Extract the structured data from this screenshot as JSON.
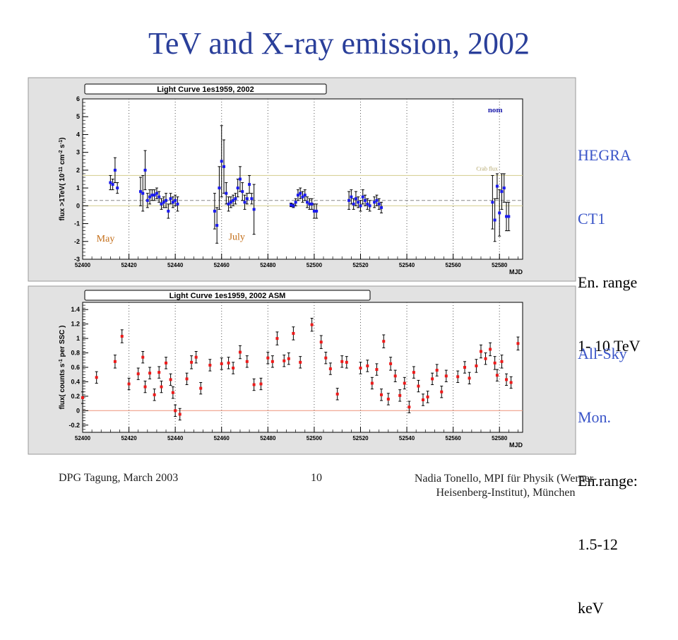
{
  "slide": {
    "title": "TeV and X-ray emission, 2002",
    "footer_left": "DPG Tagung, March 2003",
    "footer_page": "10",
    "footer_right_line1": "Nadia Tonello, MPI für Physik (Werner-",
    "footer_right_line2": "Heisenberg-Institut), München"
  },
  "side_labels": {
    "hegra_line1": "HEGRA",
    "hegra_line2": "CT1",
    "hegra_line3": "En. range",
    "hegra_line4": "1- 10 TeV",
    "asm_line1": "All-Sky",
    "asm_line2": "Mon.",
    "asm_line3": "En.range:",
    "asm_line4": "1.5-12",
    "asm_line5": "keV"
  },
  "colors": {
    "title": "#2a3f9a",
    "side_label": "#3a55c8",
    "points_top": "#1a1aee",
    "points_bottom": "#ee1a1a",
    "crab_line": "#d9d29a",
    "annotation": "#c46f1a",
    "zero_line_bottom": "#f0a08a"
  },
  "chart_data": [
    {
      "type": "scatter",
      "title": "Light Curve 1es1959, 2002",
      "xlabel": "MJD",
      "ylabel": "flux >1TeV( 10^-11 cm^-2 s^-1)",
      "xlim": [
        52400,
        52590
      ],
      "ylim": [
        -3,
        6
      ],
      "xticks": [
        "52400",
        "52420",
        "52440",
        "52460",
        "52480",
        "52500",
        "52520",
        "52540",
        "52560",
        "52580"
      ],
      "yticks": [
        "-3",
        "-2",
        "-1",
        "0",
        "1",
        "2",
        "3",
        "4",
        "5",
        "6"
      ],
      "dotted_gridlines_x": [
        52420,
        52440,
        52460,
        52480,
        52500,
        52520,
        52540,
        52560,
        52580
      ],
      "reference_lines": [
        {
          "label": "Crab flux",
          "y": 1.7
        }
      ],
      "dashed_level": 0.3,
      "annotations": [
        "nom",
        "May",
        "July"
      ],
      "points": [
        {
          "x": 52412,
          "y": 1.3,
          "err": 0.4
        },
        {
          "x": 52413,
          "y": 1.2,
          "err": 0.3
        },
        {
          "x": 52414,
          "y": 2.0,
          "err": 0.7
        },
        {
          "x": 52415,
          "y": 1.0,
          "err": 0.3
        },
        {
          "x": 52425,
          "y": 0.8,
          "err": 0.8
        },
        {
          "x": 52426,
          "y": 0.7,
          "err": 1.0
        },
        {
          "x": 52427,
          "y": 2.0,
          "err": 1.1
        },
        {
          "x": 52428,
          "y": 0.3,
          "err": 0.4
        },
        {
          "x": 52429,
          "y": 0.5,
          "err": 0.4
        },
        {
          "x": 52430,
          "y": 0.6,
          "err": 0.3
        },
        {
          "x": 52431,
          "y": 0.6,
          "err": 0.3
        },
        {
          "x": 52432,
          "y": 0.7,
          "err": 0.3
        },
        {
          "x": 52433,
          "y": 0.5,
          "err": 0.3
        },
        {
          "x": 52434,
          "y": 0.1,
          "err": 0.3
        },
        {
          "x": 52435,
          "y": 0.2,
          "err": 0.3
        },
        {
          "x": 52436,
          "y": 0.3,
          "err": 0.4
        },
        {
          "x": 52437,
          "y": -0.3,
          "err": 0.4
        },
        {
          "x": 52438,
          "y": 0.4,
          "err": 0.3
        },
        {
          "x": 52439,
          "y": 0.2,
          "err": 0.3
        },
        {
          "x": 52440,
          "y": 0.3,
          "err": 0.3
        },
        {
          "x": 52441,
          "y": 0.1,
          "err": 0.4
        },
        {
          "x": 52457,
          "y": -0.3,
          "err": 1.0
        },
        {
          "x": 52458,
          "y": -1.1,
          "err": 1.0
        },
        {
          "x": 52459,
          "y": 1.0,
          "err": 1.2
        },
        {
          "x": 52460,
          "y": 2.5,
          "err": 2.0
        },
        {
          "x": 52461,
          "y": 2.2,
          "err": 1.5
        },
        {
          "x": 52462,
          "y": 0.7,
          "err": 0.6
        },
        {
          "x": 52463,
          "y": 0.1,
          "err": 0.4
        },
        {
          "x": 52464,
          "y": 0.2,
          "err": 0.3
        },
        {
          "x": 52465,
          "y": 0.3,
          "err": 0.3
        },
        {
          "x": 52466,
          "y": 0.4,
          "err": 0.3
        },
        {
          "x": 52467,
          "y": 1.0,
          "err": 0.5
        },
        {
          "x": 52468,
          "y": 1.5,
          "err": 0.7
        },
        {
          "x": 52469,
          "y": 0.8,
          "err": 0.5
        },
        {
          "x": 52470,
          "y": 0.2,
          "err": 0.4
        },
        {
          "x": 52471,
          "y": 0.4,
          "err": 0.3
        },
        {
          "x": 52472,
          "y": 1.2,
          "err": 0.5
        },
        {
          "x": 52473,
          "y": 0.4,
          "err": 0.3
        },
        {
          "x": 52474,
          "y": -0.2,
          "err": 1.4
        },
        {
          "x": 52490,
          "y": 0.05,
          "err": 0.1
        },
        {
          "x": 52491,
          "y": 0.0,
          "err": 0.1
        },
        {
          "x": 52492,
          "y": 0.2,
          "err": 0.2
        },
        {
          "x": 52493,
          "y": 0.6,
          "err": 0.3
        },
        {
          "x": 52494,
          "y": 0.7,
          "err": 0.3
        },
        {
          "x": 52495,
          "y": 0.5,
          "err": 0.3
        },
        {
          "x": 52496,
          "y": 0.6,
          "err": 0.3
        },
        {
          "x": 52497,
          "y": 0.2,
          "err": 0.3
        },
        {
          "x": 52498,
          "y": 0.1,
          "err": 0.3
        },
        {
          "x": 52499,
          "y": 0.1,
          "err": 0.3
        },
        {
          "x": 52500,
          "y": -0.3,
          "err": 0.4
        },
        {
          "x": 52501,
          "y": -0.3,
          "err": 0.4
        },
        {
          "x": 52515,
          "y": 0.3,
          "err": 0.5
        },
        {
          "x": 52516,
          "y": 0.5,
          "err": 0.4
        },
        {
          "x": 52517,
          "y": 0.1,
          "err": 0.3
        },
        {
          "x": 52518,
          "y": 0.4,
          "err": 0.4
        },
        {
          "x": 52519,
          "y": 0.2,
          "err": 0.3
        },
        {
          "x": 52520,
          "y": 0.0,
          "err": 0.3
        },
        {
          "x": 52521,
          "y": 0.5,
          "err": 0.4
        },
        {
          "x": 52522,
          "y": 0.3,
          "err": 0.3
        },
        {
          "x": 52523,
          "y": 0.1,
          "err": 0.3
        },
        {
          "x": 52524,
          "y": 0.0,
          "err": 0.3
        },
        {
          "x": 52526,
          "y": 0.2,
          "err": 0.3
        },
        {
          "x": 52527,
          "y": 0.3,
          "err": 0.3
        },
        {
          "x": 52528,
          "y": 0.1,
          "err": 0.3
        },
        {
          "x": 52529,
          "y": -0.1,
          "err": 0.3
        },
        {
          "x": 52577,
          "y": 0.2,
          "err": 1.5
        },
        {
          "x": 52578,
          "y": -0.8,
          "err": 1.2
        },
        {
          "x": 52579,
          "y": 1.1,
          "err": 0.7
        },
        {
          "x": 52580,
          "y": -0.4,
          "err": 1.3
        },
        {
          "x": 52581,
          "y": 0.8,
          "err": 1.0
        },
        {
          "x": 52582,
          "y": 1.0,
          "err": 0.8
        },
        {
          "x": 52583,
          "y": -0.6,
          "err": 0.8
        },
        {
          "x": 52584,
          "y": -0.6,
          "err": 0.8
        }
      ]
    },
    {
      "type": "scatter",
      "title": "Light Curve 1es1959, 2002 ASM",
      "xlabel": "MJD",
      "ylabel": "flux( counts s^-1 per SSC )",
      "xlim": [
        52400,
        52590
      ],
      "ylim": [
        -0.3,
        1.5
      ],
      "xticks": [
        "52400",
        "52420",
        "52440",
        "52460",
        "52480",
        "52500",
        "52520",
        "52540",
        "52560",
        "52580"
      ],
      "yticks": [
        "-0.2",
        "0",
        "0.2",
        "0.4",
        "0.6",
        "0.8",
        "1",
        "1.2",
        "1.4"
      ],
      "dotted_gridlines_x": [
        52420,
        52440,
        52460,
        52480,
        52500,
        52520,
        52540,
        52560,
        52580
      ],
      "points": [
        {
          "x": 52400,
          "y": 0.18,
          "err": 0.08
        },
        {
          "x": 52406,
          "y": 0.46,
          "err": 0.08
        },
        {
          "x": 52414,
          "y": 0.68,
          "err": 0.09
        },
        {
          "x": 52417,
          "y": 1.03,
          "err": 0.09
        },
        {
          "x": 52420,
          "y": 0.37,
          "err": 0.08
        },
        {
          "x": 52424,
          "y": 0.51,
          "err": 0.08
        },
        {
          "x": 52426,
          "y": 0.74,
          "err": 0.08
        },
        {
          "x": 52427,
          "y": 0.33,
          "err": 0.08
        },
        {
          "x": 52429,
          "y": 0.52,
          "err": 0.08
        },
        {
          "x": 52431,
          "y": 0.22,
          "err": 0.08
        },
        {
          "x": 52433,
          "y": 0.53,
          "err": 0.08
        },
        {
          "x": 52434,
          "y": 0.33,
          "err": 0.08
        },
        {
          "x": 52436,
          "y": 0.66,
          "err": 0.08
        },
        {
          "x": 52438,
          "y": 0.43,
          "err": 0.08
        },
        {
          "x": 52439,
          "y": 0.25,
          "err": 0.08
        },
        {
          "x": 52440,
          "y": 0.0,
          "err": 0.08
        },
        {
          "x": 52442,
          "y": -0.05,
          "err": 0.08
        },
        {
          "x": 52445,
          "y": 0.44,
          "err": 0.08
        },
        {
          "x": 52447,
          "y": 0.67,
          "err": 0.09
        },
        {
          "x": 52449,
          "y": 0.74,
          "err": 0.08
        },
        {
          "x": 52451,
          "y": 0.31,
          "err": 0.08
        },
        {
          "x": 52455,
          "y": 0.63,
          "err": 0.08
        },
        {
          "x": 52460,
          "y": 0.65,
          "err": 0.08
        },
        {
          "x": 52463,
          "y": 0.66,
          "err": 0.08
        },
        {
          "x": 52465,
          "y": 0.59,
          "err": 0.08
        },
        {
          "x": 52468,
          "y": 0.81,
          "err": 0.09
        },
        {
          "x": 52471,
          "y": 0.68,
          "err": 0.08
        },
        {
          "x": 52474,
          "y": 0.36,
          "err": 0.08
        },
        {
          "x": 52477,
          "y": 0.37,
          "err": 0.08
        },
        {
          "x": 52480,
          "y": 0.73,
          "err": 0.08
        },
        {
          "x": 52482,
          "y": 0.68,
          "err": 0.08
        },
        {
          "x": 52484,
          "y": 1.0,
          "err": 0.09
        },
        {
          "x": 52487,
          "y": 0.69,
          "err": 0.08
        },
        {
          "x": 52489,
          "y": 0.72,
          "err": 0.08
        },
        {
          "x": 52491,
          "y": 1.07,
          "err": 0.09
        },
        {
          "x": 52494,
          "y": 0.67,
          "err": 0.08
        },
        {
          "x": 52499,
          "y": 1.19,
          "err": 0.09
        },
        {
          "x": 52503,
          "y": 0.95,
          "err": 0.09
        },
        {
          "x": 52505,
          "y": 0.73,
          "err": 0.08
        },
        {
          "x": 52507,
          "y": 0.58,
          "err": 0.08
        },
        {
          "x": 52510,
          "y": 0.23,
          "err": 0.08
        },
        {
          "x": 52512,
          "y": 0.68,
          "err": 0.08
        },
        {
          "x": 52514,
          "y": 0.67,
          "err": 0.08
        },
        {
          "x": 52520,
          "y": 0.59,
          "err": 0.08
        },
        {
          "x": 52523,
          "y": 0.62,
          "err": 0.08
        },
        {
          "x": 52525,
          "y": 0.38,
          "err": 0.08
        },
        {
          "x": 52527,
          "y": 0.57,
          "err": 0.08
        },
        {
          "x": 52529,
          "y": 0.22,
          "err": 0.08
        },
        {
          "x": 52530,
          "y": 0.96,
          "err": 0.09
        },
        {
          "x": 52532,
          "y": 0.16,
          "err": 0.08
        },
        {
          "x": 52533,
          "y": 0.65,
          "err": 0.09
        },
        {
          "x": 52535,
          "y": 0.48,
          "err": 0.08
        },
        {
          "x": 52537,
          "y": 0.21,
          "err": 0.08
        },
        {
          "x": 52539,
          "y": 0.38,
          "err": 0.08
        },
        {
          "x": 52541,
          "y": 0.05,
          "err": 0.08
        },
        {
          "x": 52543,
          "y": 0.53,
          "err": 0.08
        },
        {
          "x": 52545,
          "y": 0.34,
          "err": 0.08
        },
        {
          "x": 52547,
          "y": 0.15,
          "err": 0.08
        },
        {
          "x": 52549,
          "y": 0.19,
          "err": 0.08
        },
        {
          "x": 52551,
          "y": 0.44,
          "err": 0.08
        },
        {
          "x": 52553,
          "y": 0.56,
          "err": 0.08
        },
        {
          "x": 52555,
          "y": 0.26,
          "err": 0.08
        },
        {
          "x": 52557,
          "y": 0.48,
          "err": 0.08
        },
        {
          "x": 52562,
          "y": 0.47,
          "err": 0.08
        },
        {
          "x": 52565,
          "y": 0.6,
          "err": 0.08
        },
        {
          "x": 52567,
          "y": 0.45,
          "err": 0.08
        },
        {
          "x": 52570,
          "y": 0.62,
          "err": 0.09
        },
        {
          "x": 52572,
          "y": 0.82,
          "err": 0.09
        },
        {
          "x": 52574,
          "y": 0.72,
          "err": 0.08
        },
        {
          "x": 52576,
          "y": 0.85,
          "err": 0.09
        },
        {
          "x": 52578,
          "y": 0.66,
          "err": 0.09
        },
        {
          "x": 52579,
          "y": 0.49,
          "err": 0.08
        },
        {
          "x": 52581,
          "y": 0.68,
          "err": 0.09
        },
        {
          "x": 52583,
          "y": 0.43,
          "err": 0.08
        },
        {
          "x": 52585,
          "y": 0.39,
          "err": 0.08
        },
        {
          "x": 52588,
          "y": 0.93,
          "err": 0.09
        }
      ]
    }
  ]
}
